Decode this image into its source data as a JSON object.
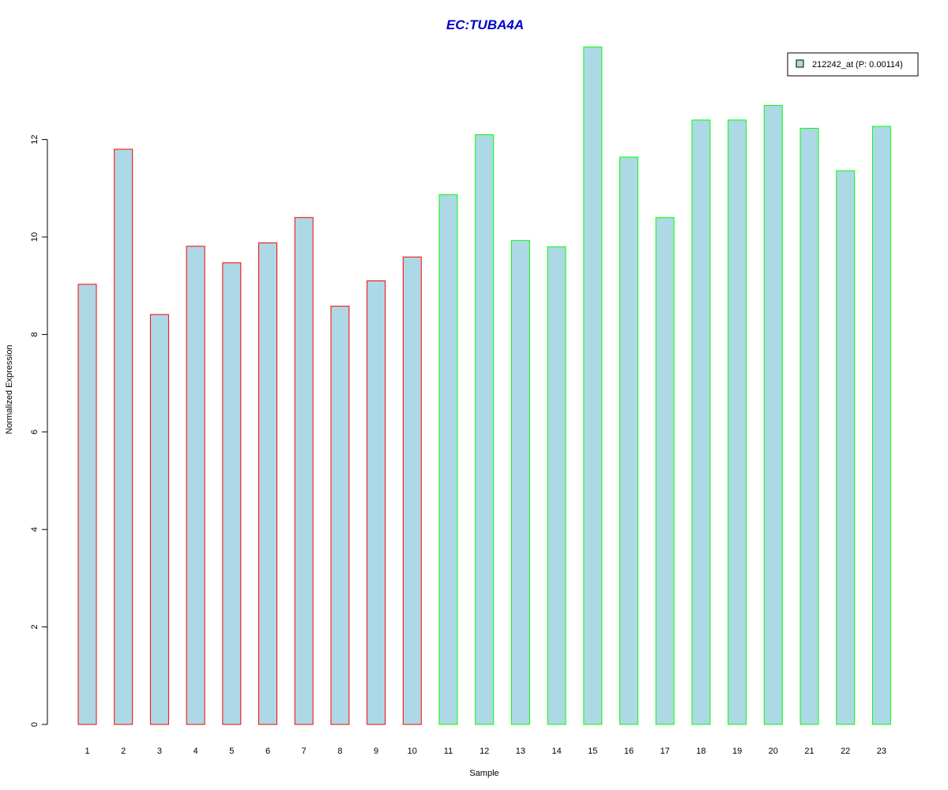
{
  "chart_data": {
    "type": "bar",
    "title": "EC:TUBA4A",
    "xlabel": "Sample",
    "ylabel": "Normalized Expression",
    "categories": [
      "1",
      "2",
      "3",
      "4",
      "5",
      "6",
      "7",
      "8",
      "9",
      "10",
      "11",
      "12",
      "13",
      "14",
      "15",
      "16",
      "17",
      "18",
      "19",
      "20",
      "21",
      "22",
      "23"
    ],
    "series": [
      {
        "name": "212242_at (P: 0.00114)",
        "values": [
          9.03,
          11.8,
          8.41,
          9.81,
          9.47,
          9.88,
          10.4,
          8.58,
          9.1,
          9.59,
          10.87,
          12.1,
          9.93,
          9.8,
          13.9,
          11.64,
          10.4,
          12.4,
          12.4,
          12.7,
          12.23,
          11.36,
          12.27
        ]
      }
    ],
    "yticks": [
      0,
      2,
      4,
      6,
      8,
      10,
      12
    ],
    "ylim": [
      0,
      14
    ],
    "grid": false,
    "legend_position": "top-right"
  },
  "colors": {
    "title": "#0000CC",
    "bar_fill": "#ADD8E6",
    "group1_border": "#FF0000",
    "group2_border": "#00FF00",
    "axis": "#000000"
  },
  "groups": {
    "group1_samples": [
      "1",
      "2",
      "3",
      "4",
      "5",
      "6",
      "7",
      "8",
      "9",
      "10"
    ],
    "group2_samples": [
      "11",
      "12",
      "13",
      "14",
      "15",
      "16",
      "17",
      "18",
      "19",
      "20",
      "21",
      "22",
      "23"
    ]
  }
}
